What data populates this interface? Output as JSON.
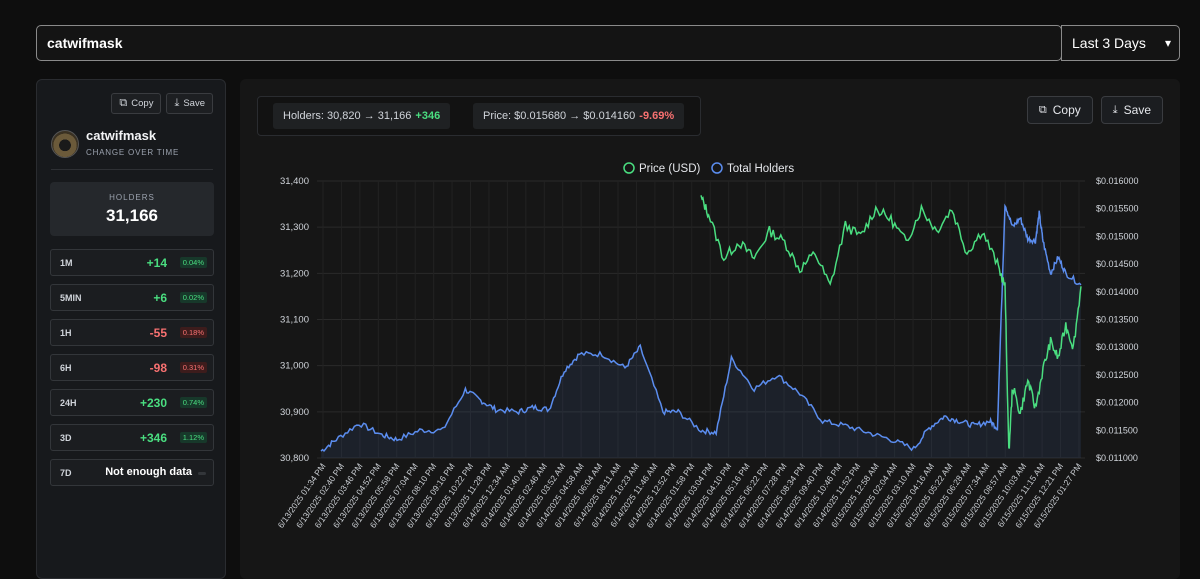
{
  "search": {
    "value": "catwifmask"
  },
  "range_select": {
    "value": "Last 3 Days"
  },
  "sidebar": {
    "copy_label": "Copy",
    "save_label": "Save",
    "token_name": "catwifmask",
    "token_sub": "CHANGE OVER TIME",
    "holders_label": "HOLDERS",
    "holders_value": "31,166",
    "rows": [
      {
        "label": "1M",
        "value": "+14",
        "pct": "0.04%",
        "trend": "pos"
      },
      {
        "label": "5MIN",
        "value": "+6",
        "pct": "0.02%",
        "trend": "pos"
      },
      {
        "label": "1H",
        "value": "-55",
        "pct": "0.18%",
        "trend": "neg"
      },
      {
        "label": "6H",
        "value": "-98",
        "pct": "0.31%",
        "trend": "neg"
      },
      {
        "label": "24H",
        "value": "+230",
        "pct": "0.74%",
        "trend": "pos"
      },
      {
        "label": "3D",
        "value": "+346",
        "pct": "1.12%",
        "trend": "pos"
      },
      {
        "label": "7D",
        "value": "Not enough data",
        "pct": "",
        "trend": "na"
      }
    ]
  },
  "stats": {
    "holders_text": "Holders: 30,820 → 31,166",
    "holders_delta": "+346",
    "price_text": "Price: $0.015680 → $0.014160",
    "price_delta": "-9.69%"
  },
  "main": {
    "copy_label": "Copy",
    "save_label": "Save"
  },
  "colors": {
    "price": "#4ade80",
    "holders": "#5b8def",
    "positive": "#4ade80",
    "negative": "#f87171"
  },
  "chart_data": {
    "type": "line",
    "legend": [
      "Price (USD)",
      "Total Holders"
    ],
    "legend_position": "top",
    "grid": true,
    "x_ticks": [
      "6/13/2025 01:34 PM",
      "6/13/2025 02:40 PM",
      "6/13/2025 03:46 PM",
      "6/13/2025 04:52 PM",
      "6/13/2025 05:58 PM",
      "6/13/2025 07:04 PM",
      "6/13/2025 08:10 PM",
      "6/13/2025 09:16 PM",
      "6/13/2025 10:22 PM",
      "6/13/2025 11:28 PM",
      "6/14/2025 12:34 AM",
      "6/14/2025 01:40 AM",
      "6/14/2025 02:46 AM",
      "6/14/2025 03:52 AM",
      "6/14/2025 04:58 AM",
      "6/14/2025 06:04 AM",
      "6/14/2025 08:11 AM",
      "6/14/2025 10:23 AM",
      "6/14/2025 11:46 AM",
      "6/14/2025 12:52 PM",
      "6/14/2025 01:58 PM",
      "6/14/2025 03:04 PM",
      "6/14/2025 04:10 PM",
      "6/14/2025 05:16 PM",
      "6/14/2025 06:22 PM",
      "6/14/2025 07:28 PM",
      "6/14/2025 08:34 PM",
      "6/14/2025 09:40 PM",
      "6/14/2025 10:46 PM",
      "6/14/2025 11:52 PM",
      "6/15/2025 12:58 AM",
      "6/15/2025 02:04 AM",
      "6/15/2025 03:10 AM",
      "6/15/2025 04:16 AM",
      "6/15/2025 05:22 AM",
      "6/15/2025 06:28 AM",
      "6/15/2025 07:34 AM",
      "6/15/2025 08:57 AM",
      "6/15/2025 10:03 AM",
      "6/15/2025 11:15 AM",
      "6/15/2025 12:21 PM",
      "6/15/2025 01:27 PM"
    ],
    "y_left": {
      "label": "Total Holders",
      "ticks": [
        "31,400",
        "31,300",
        "31,200",
        "31,100",
        "31,000",
        "30,900",
        "30,800"
      ],
      "min": 30800,
      "max": 31400
    },
    "y_right": {
      "label": "Price (USD)",
      "ticks": [
        "$0.016000",
        "$0.015500",
        "$0.015000",
        "$0.014500",
        "$0.014000",
        "$0.013500",
        "$0.013000",
        "$0.012500",
        "$0.012000",
        "$0.011500",
        "$0.011000"
      ],
      "min": 0.011,
      "max": 0.016
    },
    "series": [
      {
        "name": "Total Holders",
        "axis": "left",
        "x": [
          0,
          0.02,
          0.05,
          0.08,
          0.1,
          0.13,
          0.16,
          0.19,
          0.21,
          0.23,
          0.26,
          0.28,
          0.3,
          0.32,
          0.34,
          0.37,
          0.4,
          0.42,
          0.45,
          0.47,
          0.5,
          0.52,
          0.54,
          0.57,
          0.6,
          0.63,
          0.66,
          0.69,
          0.72,
          0.75,
          0.78,
          0.8,
          0.82,
          0.84,
          0.86,
          0.88,
          0.89,
          0.9,
          0.91,
          0.92,
          0.93,
          0.94,
          0.945,
          0.95,
          0.96,
          0.97,
          0.98,
          1.0
        ],
        "y": [
          30815,
          30840,
          30875,
          30850,
          30840,
          30860,
          30860,
          30948,
          30925,
          30905,
          30900,
          30910,
          30905,
          30990,
          31025,
          31025,
          30995,
          31040,
          30900,
          30900,
          30860,
          30855,
          31015,
          30950,
          30980,
          30940,
          30880,
          30870,
          30855,
          30840,
          30820,
          30865,
          30890,
          30880,
          30870,
          30880,
          30865,
          31350,
          31300,
          31320,
          31275,
          31270,
          31330,
          31270,
          31200,
          31235,
          31200,
          31175
        ]
      },
      {
        "name": "Price (USD)",
        "axis": "right",
        "x": [
          0.5,
          0.51,
          0.53,
          0.55,
          0.57,
          0.59,
          0.61,
          0.63,
          0.65,
          0.67,
          0.69,
          0.71,
          0.73,
          0.75,
          0.77,
          0.79,
          0.81,
          0.83,
          0.85,
          0.87,
          0.89,
          0.9,
          0.905,
          0.91,
          0.92,
          0.93,
          0.94,
          0.95,
          0.96,
          0.97,
          0.98,
          0.99,
          1.0
        ],
        "y": [
          0.0157,
          0.0154,
          0.0146,
          0.0149,
          0.0146,
          0.0151,
          0.0149,
          0.0144,
          0.0147,
          0.0141,
          0.0152,
          0.015,
          0.0155,
          0.0153,
          0.0149,
          0.0155,
          0.0151,
          0.0155,
          0.0147,
          0.0151,
          0.0145,
          0.0141,
          0.0111,
          0.0123,
          0.0118,
          0.0124,
          0.0119,
          0.0126,
          0.0131,
          0.0128,
          0.0134,
          0.013,
          0.0141
        ]
      }
    ]
  }
}
